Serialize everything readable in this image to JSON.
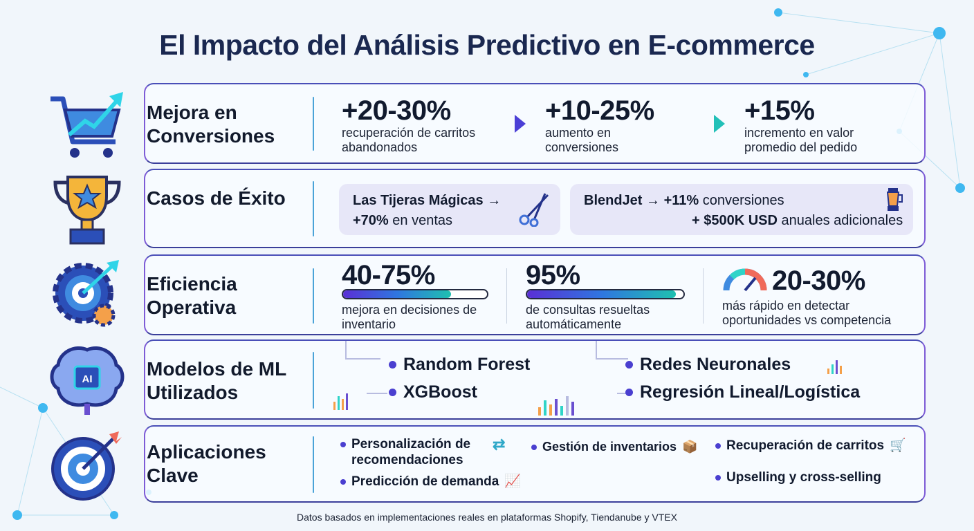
{
  "title": "El Impacto del Análisis Predictivo en E-commerce",
  "colors": {
    "accent": "#7d5bd6",
    "navy": "#1a2850",
    "teal": "#1fc0b0",
    "bullet": "#4a3fd0"
  },
  "rows": {
    "conversiones": {
      "label": "Mejora en Conversiones",
      "icon": "cart-trend-icon",
      "stats": [
        {
          "value": "+20-30%",
          "desc": "recuperación de carritos abandonados"
        },
        {
          "value": "+10-25%",
          "desc": "aumento en conversiones"
        },
        {
          "value": "+15%",
          "desc": "incremento en valor promedio del pedido"
        }
      ]
    },
    "casos": {
      "label": "Casos de Éxito",
      "icon": "trophy-icon",
      "cases": [
        {
          "name": "Las Tijeras Mágicas",
          "arrow": "→",
          "result": "+70%",
          "result_text": "en ventas",
          "icon": "scissors-icon"
        },
        {
          "name": "BlendJet",
          "arrow": "→",
          "result": "+11%",
          "result_text": "conversiones",
          "result2": "+ $500K USD",
          "result2_text": "anuales adicionales",
          "icon": "blender-icon"
        }
      ]
    },
    "eficiencia": {
      "label": "Eficiencia Operativa",
      "icon": "gear-target-icon",
      "stats": [
        {
          "value": "40-75%",
          "desc": "mejora en decisiones de inventario",
          "progress": 75
        },
        {
          "value": "95%",
          "desc": "de consultas resueltas automáticamente",
          "progress": 95
        },
        {
          "value": "20-30%",
          "desc": "más rápido en detectar oportunidades vs competencia",
          "icon": "speedometer-icon"
        }
      ]
    },
    "modelos": {
      "label": "Modelos de ML Utilizados",
      "icon": "ai-brain-icon",
      "items": [
        "Random Forest",
        "XGBoost",
        "Redes Neuronales",
        "Regresión Lineal/Logística"
      ]
    },
    "aplicaciones": {
      "label": "Aplicaciones Clave",
      "icon": "target-arrow-icon",
      "items": [
        "Personalización de recomendaciones",
        "Predicción de demanda",
        "Gestión de inventarios",
        "Recuperación de carritos",
        "Upselling y cross-selling"
      ]
    }
  },
  "footer": "Datos basados en implementaciones reales en plataformas Shopify, Tiendanube y VTEX"
}
